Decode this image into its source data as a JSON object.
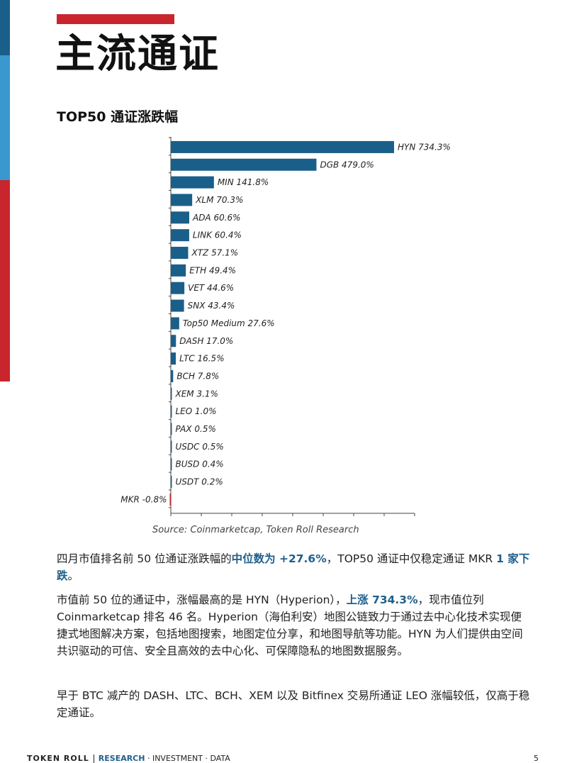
{
  "colors": {
    "bar_positive": "#1a5f89",
    "bar_negative": "#c8262c",
    "side_blue_dark": "#1a5f89",
    "side_blue_light": "#3b97cf",
    "side_red": "#c8262c",
    "highlight": "#1e5f8c"
  },
  "page_title": "主流通证",
  "chart_heading": "TOP50 通证涨跌幅",
  "chart_data": {
    "type": "bar",
    "orientation": "horizontal",
    "categories": [
      "HYN",
      "DGB",
      "MIN",
      "XLM",
      "ADA",
      "LINK",
      "XTZ",
      "ETH",
      "VET",
      "SNX",
      "Top50 Medium",
      "DASH",
      "LTC",
      "BCH",
      "XEM",
      "LEO",
      "PAX",
      "USDC",
      "BUSD",
      "USDT",
      "MKR"
    ],
    "values": [
      734.3,
      479.0,
      141.8,
      70.3,
      60.6,
      60.4,
      57.1,
      49.4,
      44.6,
      43.4,
      27.6,
      17.0,
      16.5,
      7.8,
      3.1,
      1.0,
      0.5,
      0.5,
      0.4,
      0.2,
      -0.8
    ],
    "labels": [
      "HYN 734.3%",
      "DGB 479.0%",
      "MIN 141.8%",
      "XLM 70.3%",
      "ADA 60.6%",
      "LINK 60.4%",
      "XTZ 57.1%",
      "ETH 49.4%",
      "VET 44.6%",
      "SNX 43.4%",
      "Top50 Medium 27.6%",
      "DASH 17.0%",
      "LTC 16.5%",
      "BCH 7.8%",
      "XEM 3.1%",
      "LEO 1.0%",
      "PAX 0.5%",
      "USDC 0.5%",
      "BUSD 0.4%",
      "USDT 0.2%",
      "MKR -0.8%"
    ],
    "xlim": [
      -0.8,
      800
    ],
    "grid": false,
    "legend": "none"
  },
  "source": "Source: Coinmarketcap, Token Roll Research",
  "paragraphs": {
    "p1": {
      "a": "四月市值排名前 50 位通证涨跌幅的",
      "b": "中位数为 +27.6%",
      "c": "，TOP50 通证中仅稳定通证 MKR ",
      "d": "1 家下跌",
      "e": "。"
    },
    "p2": {
      "a": "市值前 50 位的通证中，涨幅最高的是 HYN（Hyperion），",
      "b": "上涨 734.3%",
      "c": "，现市值位列 Coinmarketcap 排名 46 名。Hyperion（海伯利安）地图公链致力于通过去中心化技术实现便捷式地图解决方案，包括地图搜索，地图定位分享，和地图导航等功能。HYN 为人们提供由空间共识驱动的可信、安全且高效的去中心化、可保障隐私的地图数据服务。"
    },
    "p3": "早于 BTC 减产的 DASH、LTC、BCH、XEM 以及 Bitfinex 交易所通证 LEO 涨幅较低，仅高于稳定通证。"
  },
  "footer": {
    "brand": "TOKEN ROLL",
    "research": "RESEARCH",
    "rest": " · INVESTMENT · DATA",
    "page": "5"
  }
}
